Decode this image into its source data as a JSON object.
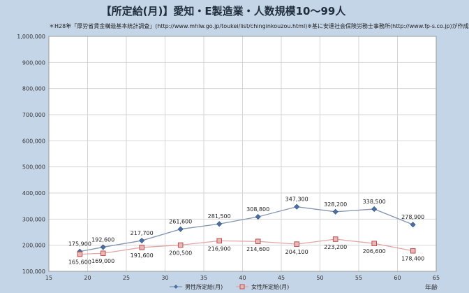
{
  "chart_data": {
    "type": "line",
    "title": "【所定給(月)】愛知・E製造業・人数規模10〜99人",
    "subtitle": "＊H28年「厚労省賃金構造基本統計調査」(http://www.mhlw.go.jp/toukei/list/chinginkouzou.html)※基に安達社会保険労務士事務所(http://www.fp-s.co.jp)が作成",
    "xlabel": "年齢",
    "ylabel": "",
    "xlim": [
      15,
      65
    ],
    "ylim": [
      100000,
      1000000
    ],
    "x_ticks": [
      "15",
      "20",
      "25",
      "30",
      "35",
      "40",
      "45",
      "50",
      "55",
      "60",
      "65"
    ],
    "y_ticks": [
      "100,000",
      "200,000",
      "300,000",
      "400,000",
      "500,000",
      "600,000",
      "700,000",
      "800,000",
      "900,000",
      "1,000,000"
    ],
    "grid": true,
    "legend_position": "bottom",
    "series": [
      {
        "name": "男性所定給(月)",
        "color": "#4a6fa5",
        "marker": "diamond",
        "x": [
          19,
          22,
          27,
          32,
          37,
          42,
          47,
          52,
          57,
          62
        ],
        "values": [
          175900,
          192600,
          217700,
          261600,
          281500,
          308800,
          347300,
          328200,
          338500,
          278900
        ],
        "labels": [
          "175,900",
          "192,600",
          "217,700",
          "261,600",
          "281,500",
          "308,800",
          "347,300",
          "328,200",
          "338,500",
          "278,900"
        ]
      },
      {
        "name": "女性所定給(月)",
        "color": "#c0504d",
        "marker": "square",
        "x": [
          19,
          22,
          27,
          32,
          37,
          42,
          47,
          52,
          57,
          62
        ],
        "values": [
          165600,
          169000,
          191600,
          200500,
          216900,
          214600,
          204100,
          223200,
          206600,
          178400
        ],
        "labels": [
          "165,600",
          "169,000",
          "191,600",
          "200,500",
          "216,900",
          "214,600",
          "204,100",
          "223,200",
          "206,600",
          "178,400"
        ]
      }
    ]
  }
}
